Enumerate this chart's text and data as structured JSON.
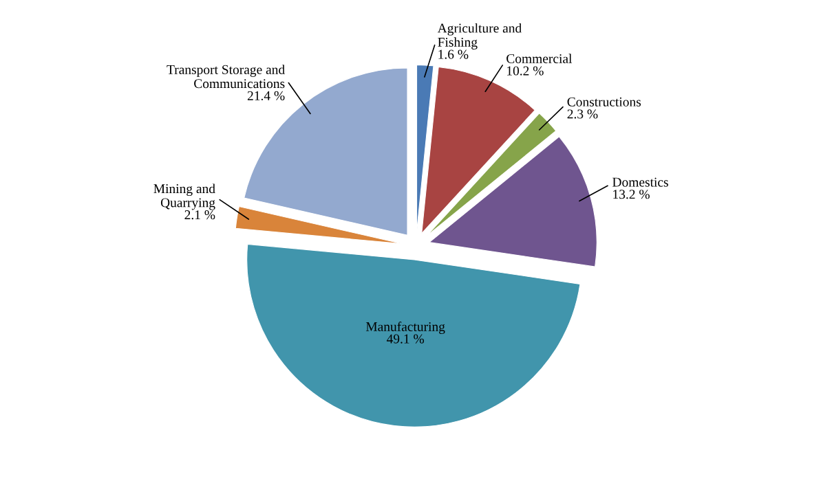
{
  "chart_data": {
    "type": "pie",
    "categories": [
      "Agriculture and\nFishing",
      "Commercial",
      "Constructions",
      "Domestics",
      "Manufacturing",
      "Mining and\nQuarrying",
      "Transport Storage and\nCommunications"
    ],
    "values": [
      1.6,
      10.2,
      2.3,
      13.2,
      49.1,
      2.1,
      21.4
    ],
    "colors": [
      "#4a7ab5",
      "#a84442",
      "#86a44a",
      "#6f558f",
      "#4195ac",
      "#d9843a",
      "#93a9cf"
    ],
    "value_labels": [
      "1.6 %",
      "10.2 %",
      "2.3 %",
      "13.2 %",
      "49.1 %",
      "2.1 %",
      "21.4 %"
    ],
    "data_labels": true,
    "legend": false
  }
}
